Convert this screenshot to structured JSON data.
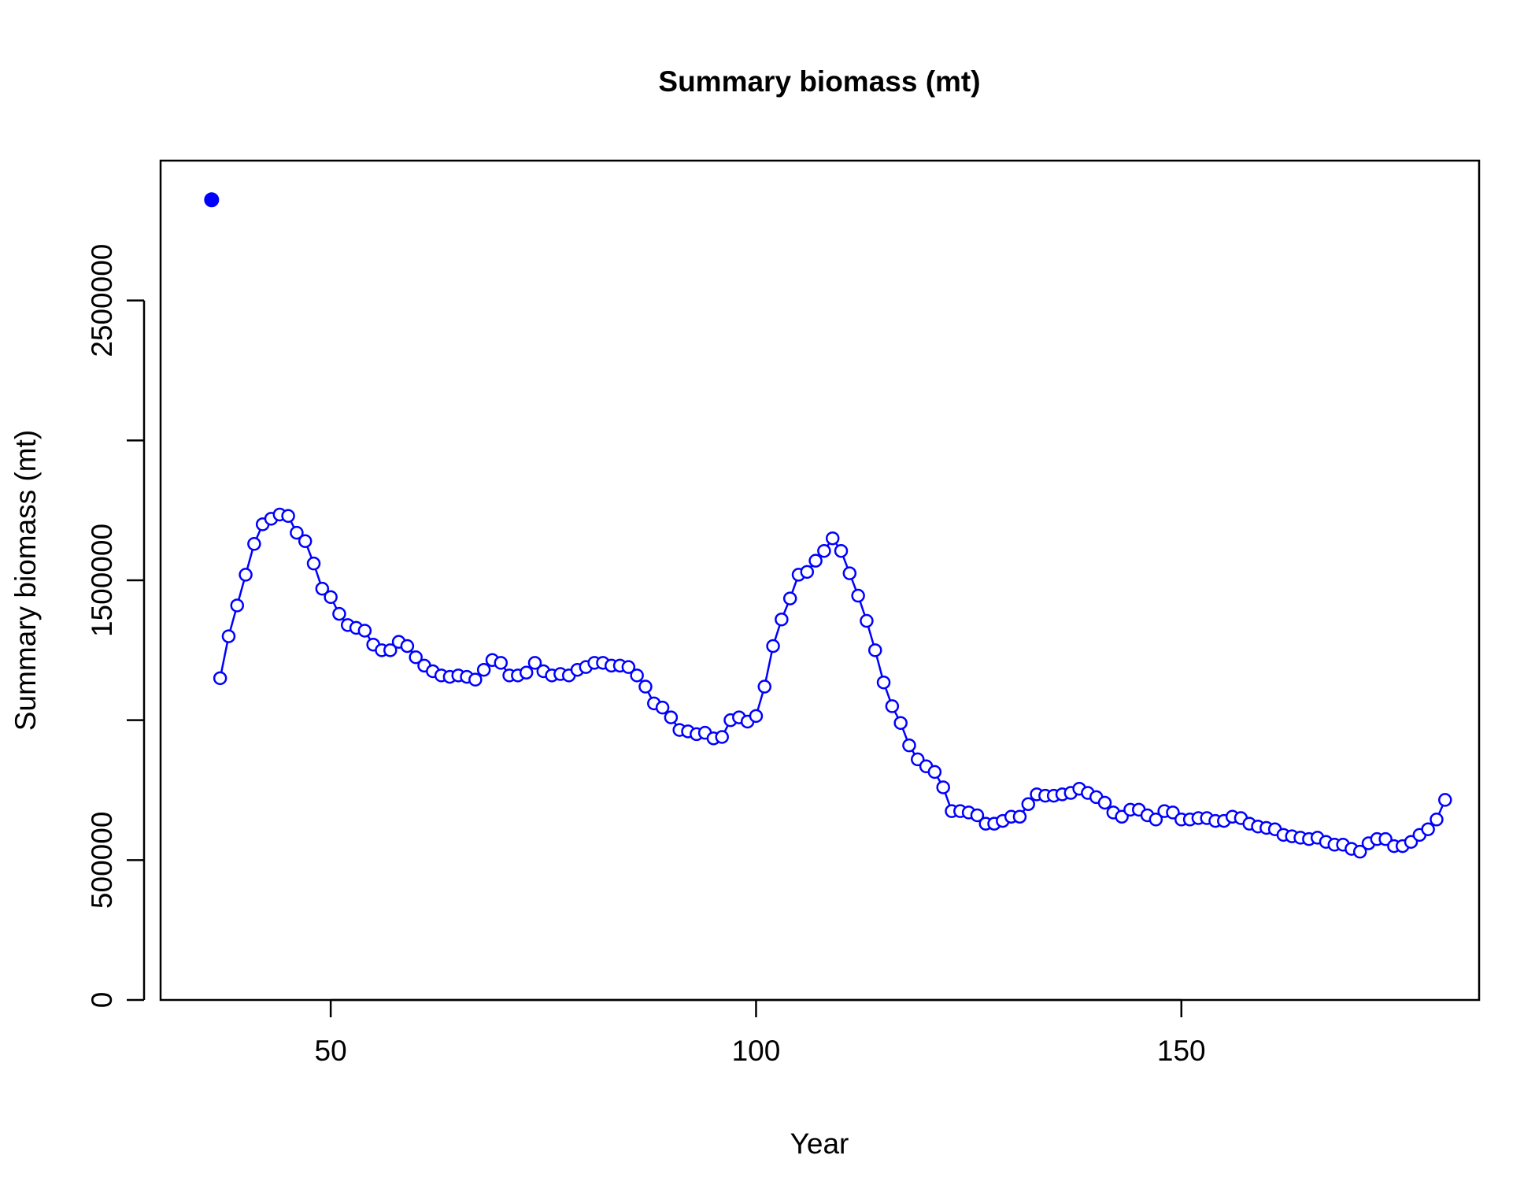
{
  "chart_data": {
    "type": "line",
    "title": "Summary biomass (mt)",
    "xlabel": "Year",
    "ylabel": "Summary biomass (mt)",
    "xlim": [
      30,
      185
    ],
    "ylim": [
      0,
      3000000
    ],
    "x_ticks": [
      50,
      100,
      150
    ],
    "x_tick_labels": [
      "50",
      "100",
      "150"
    ],
    "y_ticks": [
      0,
      500000,
      1000000,
      1500000,
      2000000,
      2500000
    ],
    "y_tick_labels": [
      "0",
      "500000",
      "",
      "1500000",
      "",
      "2500000"
    ],
    "grid": false,
    "legend": "none",
    "colors": {
      "series": "#0000ff",
      "axes": "#000000"
    },
    "virgin_point": {
      "x": 36,
      "y": 2860000,
      "marker": "filled-circle"
    },
    "series": [
      {
        "marker": "open-circle",
        "x": [
          37,
          38,
          39,
          40,
          41,
          42,
          43,
          44,
          45,
          46,
          47,
          48,
          49,
          50,
          51,
          52,
          53,
          54,
          55,
          56,
          57,
          58,
          59,
          60,
          61,
          62,
          63,
          64,
          65,
          66,
          67,
          68,
          69,
          70,
          71,
          72,
          73,
          74,
          75,
          76,
          77,
          78,
          79,
          80,
          81,
          82,
          83,
          84,
          85,
          86,
          87,
          88,
          89,
          90,
          91,
          92,
          93,
          94,
          95,
          96,
          97,
          98,
          99,
          100,
          101,
          102,
          103,
          104,
          105,
          106,
          107,
          108,
          109,
          110,
          111,
          112,
          113,
          114,
          115,
          116,
          117,
          118,
          119,
          120,
          121,
          122,
          123,
          124,
          125,
          126,
          127,
          128,
          129,
          130,
          131,
          132,
          133,
          134,
          135,
          136,
          137,
          138,
          139,
          140,
          141,
          142,
          143,
          144,
          145,
          146,
          147,
          148,
          149,
          150,
          151,
          152,
          153,
          154,
          155,
          156,
          157,
          158,
          159,
          160,
          161,
          162,
          163,
          164,
          165,
          166,
          167,
          168,
          169,
          170,
          171,
          172,
          173,
          174,
          175,
          176,
          177,
          178,
          179,
          180,
          181
        ],
        "y": [
          1150000,
          1300000,
          1410000,
          1520000,
          1630000,
          1700000,
          1720000,
          1735000,
          1730000,
          1670000,
          1640000,
          1560000,
          1470000,
          1440000,
          1380000,
          1340000,
          1330000,
          1320000,
          1270000,
          1250000,
          1250000,
          1280000,
          1265000,
          1225000,
          1195000,
          1175000,
          1160000,
          1155000,
          1160000,
          1155000,
          1145000,
          1180000,
          1215000,
          1205000,
          1160000,
          1160000,
          1170000,
          1205000,
          1175000,
          1160000,
          1165000,
          1160000,
          1180000,
          1190000,
          1205000,
          1205000,
          1195000,
          1195000,
          1190000,
          1160000,
          1120000,
          1060000,
          1045000,
          1010000,
          965000,
          960000,
          950000,
          955000,
          935000,
          940000,
          1000000,
          1010000,
          995000,
          1015000,
          1120000,
          1265000,
          1360000,
          1435000,
          1520000,
          1530000,
          1570000,
          1605000,
          1650000,
          1605000,
          1525000,
          1445000,
          1355000,
          1250000,
          1135000,
          1050000,
          990000,
          910000,
          860000,
          835000,
          815000,
          760000,
          675000,
          675000,
          670000,
          660000,
          630000,
          630000,
          640000,
          655000,
          655000,
          700000,
          735000,
          730000,
          730000,
          735000,
          740000,
          755000,
          740000,
          725000,
          705000,
          670000,
          655000,
          680000,
          680000,
          660000,
          645000,
          675000,
          670000,
          645000,
          645000,
          650000,
          650000,
          640000,
          640000,
          655000,
          650000,
          630000,
          620000,
          615000,
          610000,
          590000,
          585000,
          580000,
          575000,
          580000,
          565000,
          555000,
          555000,
          540000,
          530000,
          560000,
          575000,
          575000,
          550000,
          550000,
          565000,
          590000,
          610000,
          645000,
          715000
        ]
      }
    ]
  }
}
